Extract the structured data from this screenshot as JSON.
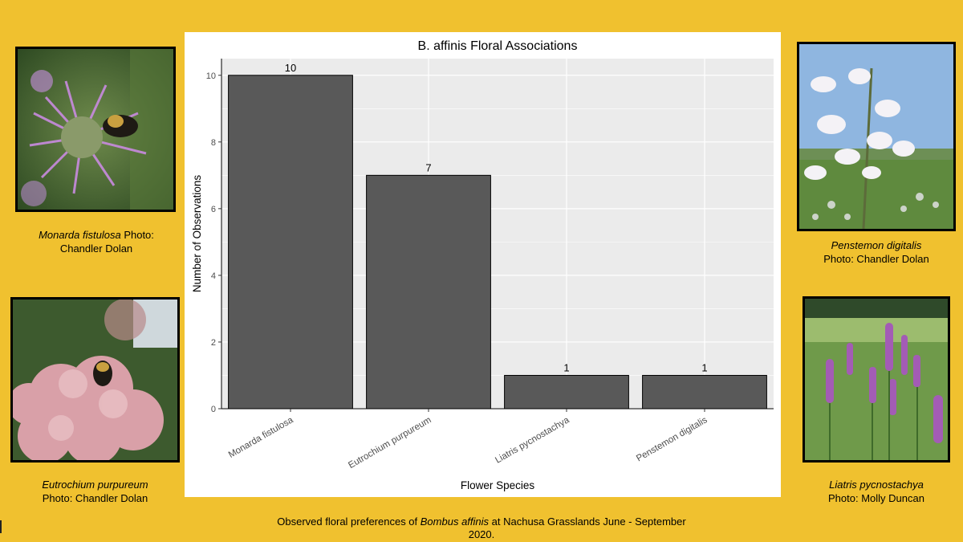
{
  "captions": {
    "monarda": {
      "species": "Monarda fistulosa",
      "rest1": " Photo:",
      "line2": "Chandler Dolan"
    },
    "eutrochium": {
      "species": "Eutrochium purpureum",
      "line2": "Photo: Chandler Dolan"
    },
    "penstemon": {
      "species": "Penstemon digitalis",
      "line2": "Photo: Chandler Dolan"
    },
    "liatris": {
      "species": "Liatris pycnostachya",
      "line2": "Photo: Molly Duncan"
    }
  },
  "footer": {
    "before": "Observed floral preferences of ",
    "species": "Bombus affinis",
    "after": " at Nachusa Grasslands June - September",
    "line2": "2020."
  },
  "chart_data": {
    "type": "bar",
    "title": "B. affinis Floral Associations",
    "xlabel": "Flower Species",
    "ylabel": "Number of Observations",
    "categories": [
      "Monarda fistulosa",
      "Eutrochium purpureum",
      "Liatris pycnostachya",
      "Penstemon digitalis"
    ],
    "values": [
      10,
      7,
      1,
      1
    ],
    "data_labels": [
      "10",
      "7",
      "1",
      "1"
    ],
    "yticks": [
      0,
      2,
      4,
      6,
      8,
      10
    ],
    "ylim": [
      0,
      10.5
    ],
    "grid": true,
    "bar_color": "#595959",
    "panel_color": "#ebebeb"
  }
}
